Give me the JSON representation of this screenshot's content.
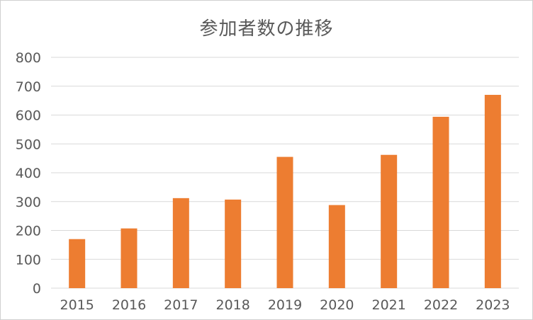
{
  "chart_data": {
    "type": "bar",
    "title": "参加者数の推移",
    "xlabel": "",
    "ylabel": "",
    "categories": [
      "2015",
      "2016",
      "2017",
      "2018",
      "2019",
      "2020",
      "2021",
      "2022",
      "2023"
    ],
    "values": [
      170,
      207,
      312,
      307,
      455,
      288,
      462,
      594,
      670
    ],
    "ylim": [
      0,
      800
    ],
    "yticks": [
      0,
      100,
      200,
      300,
      400,
      500,
      600,
      700,
      800
    ],
    "ytick_labels": [
      "0",
      "100",
      "200",
      "300",
      "400",
      "500",
      "600",
      "700",
      "800"
    ],
    "grid": true,
    "legend": "none",
    "bar_color": "#ED7D31",
    "grid_color": "#D9D9D9"
  }
}
